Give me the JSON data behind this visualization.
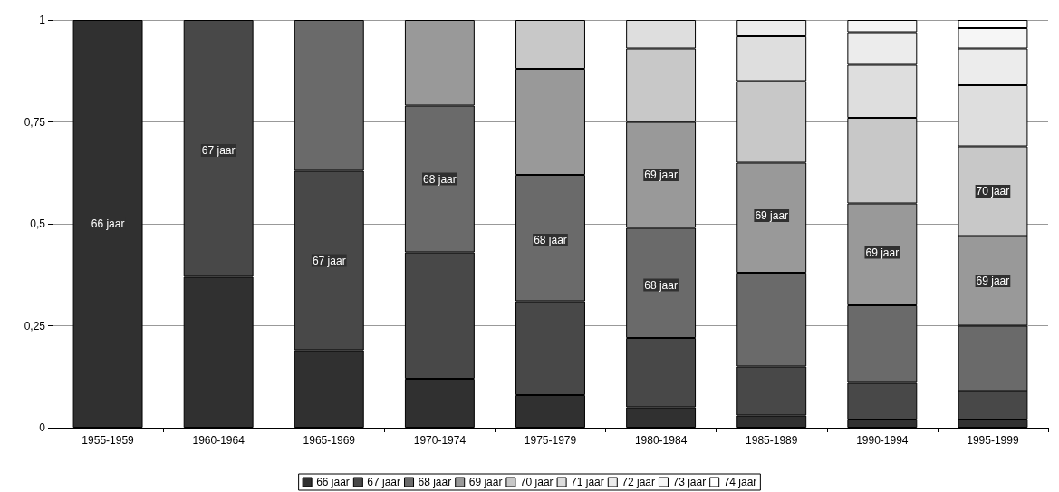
{
  "chart_data": {
    "type": "bar",
    "stacked": true,
    "categories": [
      "1955-1959",
      "1960-1964",
      "1965-1969",
      "1970-1974",
      "1975-1979",
      "1980-1984",
      "1985-1989",
      "1990-1994",
      "1995-1999"
    ],
    "series": [
      {
        "name": "66 jaar",
        "color": "#303030",
        "values": [
          1,
          0.37,
          0.19,
          0.12,
          0.08,
          0.05,
          0.03,
          0.02,
          0.02
        ]
      },
      {
        "name": "67 jaar",
        "color": "#484848",
        "values": [
          null,
          0.63,
          0.44,
          0.31,
          0.23,
          0.17,
          0.12,
          0.09,
          0.07
        ]
      },
      {
        "name": "68 jaar",
        "color": "#6a6a6a",
        "values": [
          null,
          null,
          0.37,
          0.36,
          0.31,
          0.27,
          0.23,
          0.19,
          0.16
        ]
      },
      {
        "name": "69 jaar",
        "color": "#999999",
        "values": [
          null,
          null,
          null,
          0.21,
          0.26,
          0.26,
          0.27,
          0.25,
          0.22
        ]
      },
      {
        "name": "70 jaar",
        "color": "#c8c8c8",
        "values": [
          null,
          null,
          null,
          null,
          0.12,
          0.18,
          0.2,
          0.21,
          0.22
        ]
      },
      {
        "name": "71 jaar",
        "color": "#dedede",
        "values": [
          null,
          null,
          null,
          null,
          null,
          0.07,
          0.11,
          0.13,
          0.15
        ]
      },
      {
        "name": "72 jaar",
        "color": "#ececec",
        "values": [
          null,
          null,
          null,
          null,
          null,
          null,
          0.04,
          0.08,
          0.09
        ]
      },
      {
        "name": "73 jaar",
        "color": "#f6f6f6",
        "values": [
          null,
          null,
          null,
          null,
          null,
          null,
          null,
          0.03,
          0.05
        ]
      },
      {
        "name": "74 jaar",
        "color": "#ffffff",
        "values": [
          null,
          null,
          null,
          null,
          null,
          null,
          null,
          null,
          0.02
        ]
      }
    ],
    "ylim": [
      0,
      1
    ],
    "yticks": [
      0,
      {
        "value": 0.25,
        "label": "0,25"
      },
      {
        "value": 0.5,
        "label": "0,5"
      },
      {
        "value": 0.75,
        "label": "0,75"
      },
      1
    ],
    "grid": "y",
    "legend": "bottom",
    "annotations": [
      {
        "text": "66 jaar",
        "x": "1955-1959",
        "y": 0.5
      },
      {
        "text": "67 jaar",
        "x": "1960-1964",
        "y": 0.68
      },
      {
        "text": "67 jaar",
        "x": "1965-1969",
        "y": 0.41
      },
      {
        "text": "68 jaar",
        "x": "1970-1974",
        "y": 0.61
      },
      {
        "text": "68 jaar",
        "x": "1975-1979",
        "y": 0.46
      },
      {
        "text": "69 jaar",
        "x": "1980-1984",
        "y": 0.62
      },
      {
        "text": "68 jaar",
        "x": "1980-1984",
        "y": 0.35
      },
      {
        "text": "69 jaar",
        "x": "1985-1989",
        "y": 0.52
      },
      {
        "text": "69 jaar",
        "x": "1990-1994",
        "y": 0.43
      },
      {
        "text": "70 jaar",
        "x": "1995-1999",
        "y": 0.58
      },
      {
        "text": "69 jaar",
        "x": "1995-1999",
        "y": 0.36
      }
    ]
  }
}
